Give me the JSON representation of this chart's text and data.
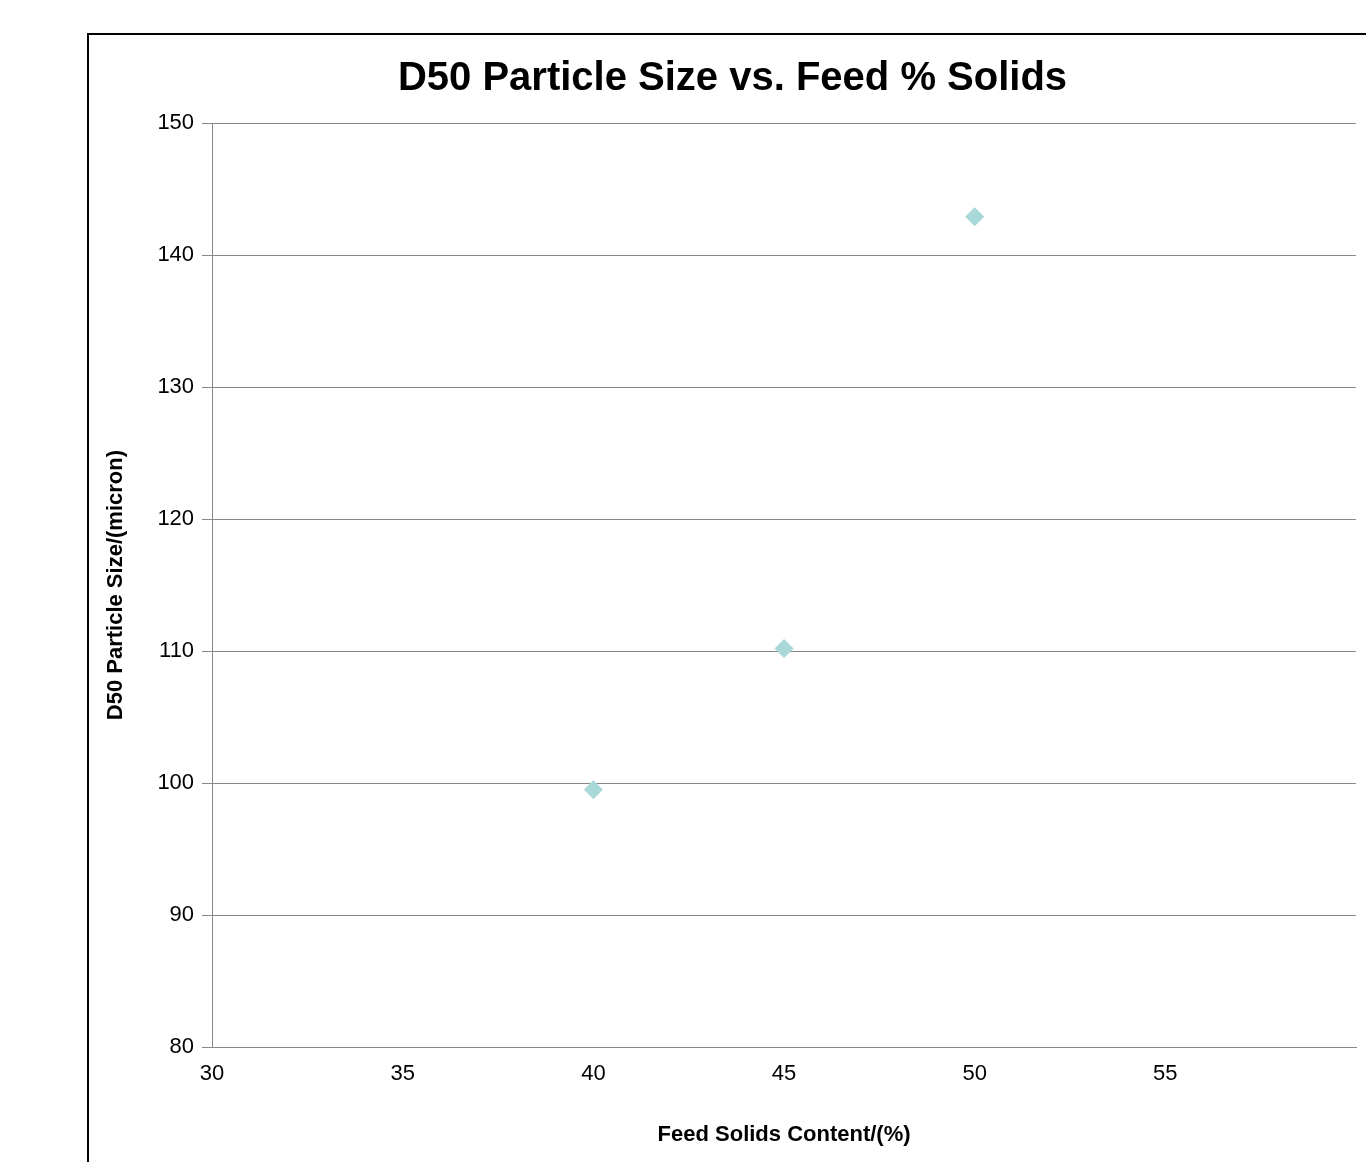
{
  "chart_data": {
    "type": "scatter",
    "title": "D50 Particle Size vs. Feed % Solids",
    "xlabel": "Feed Solids Content/(%)",
    "ylabel": "D50 Particle Size/(micron)",
    "x": [
      40,
      45,
      50
    ],
    "series": [
      {
        "color": "#a9d8d8",
        "values": [
          99.5,
          110.2,
          142.9
        ]
      }
    ],
    "xlim": [
      30,
      60
    ],
    "xticks": [
      30,
      35,
      40,
      45,
      50,
      55
    ],
    "ylim": [
      80,
      150
    ],
    "yticks": [
      80,
      90,
      100,
      110,
      120,
      130,
      140,
      150
    ],
    "grid": "y",
    "marker": "diamond",
    "legend": false
  }
}
